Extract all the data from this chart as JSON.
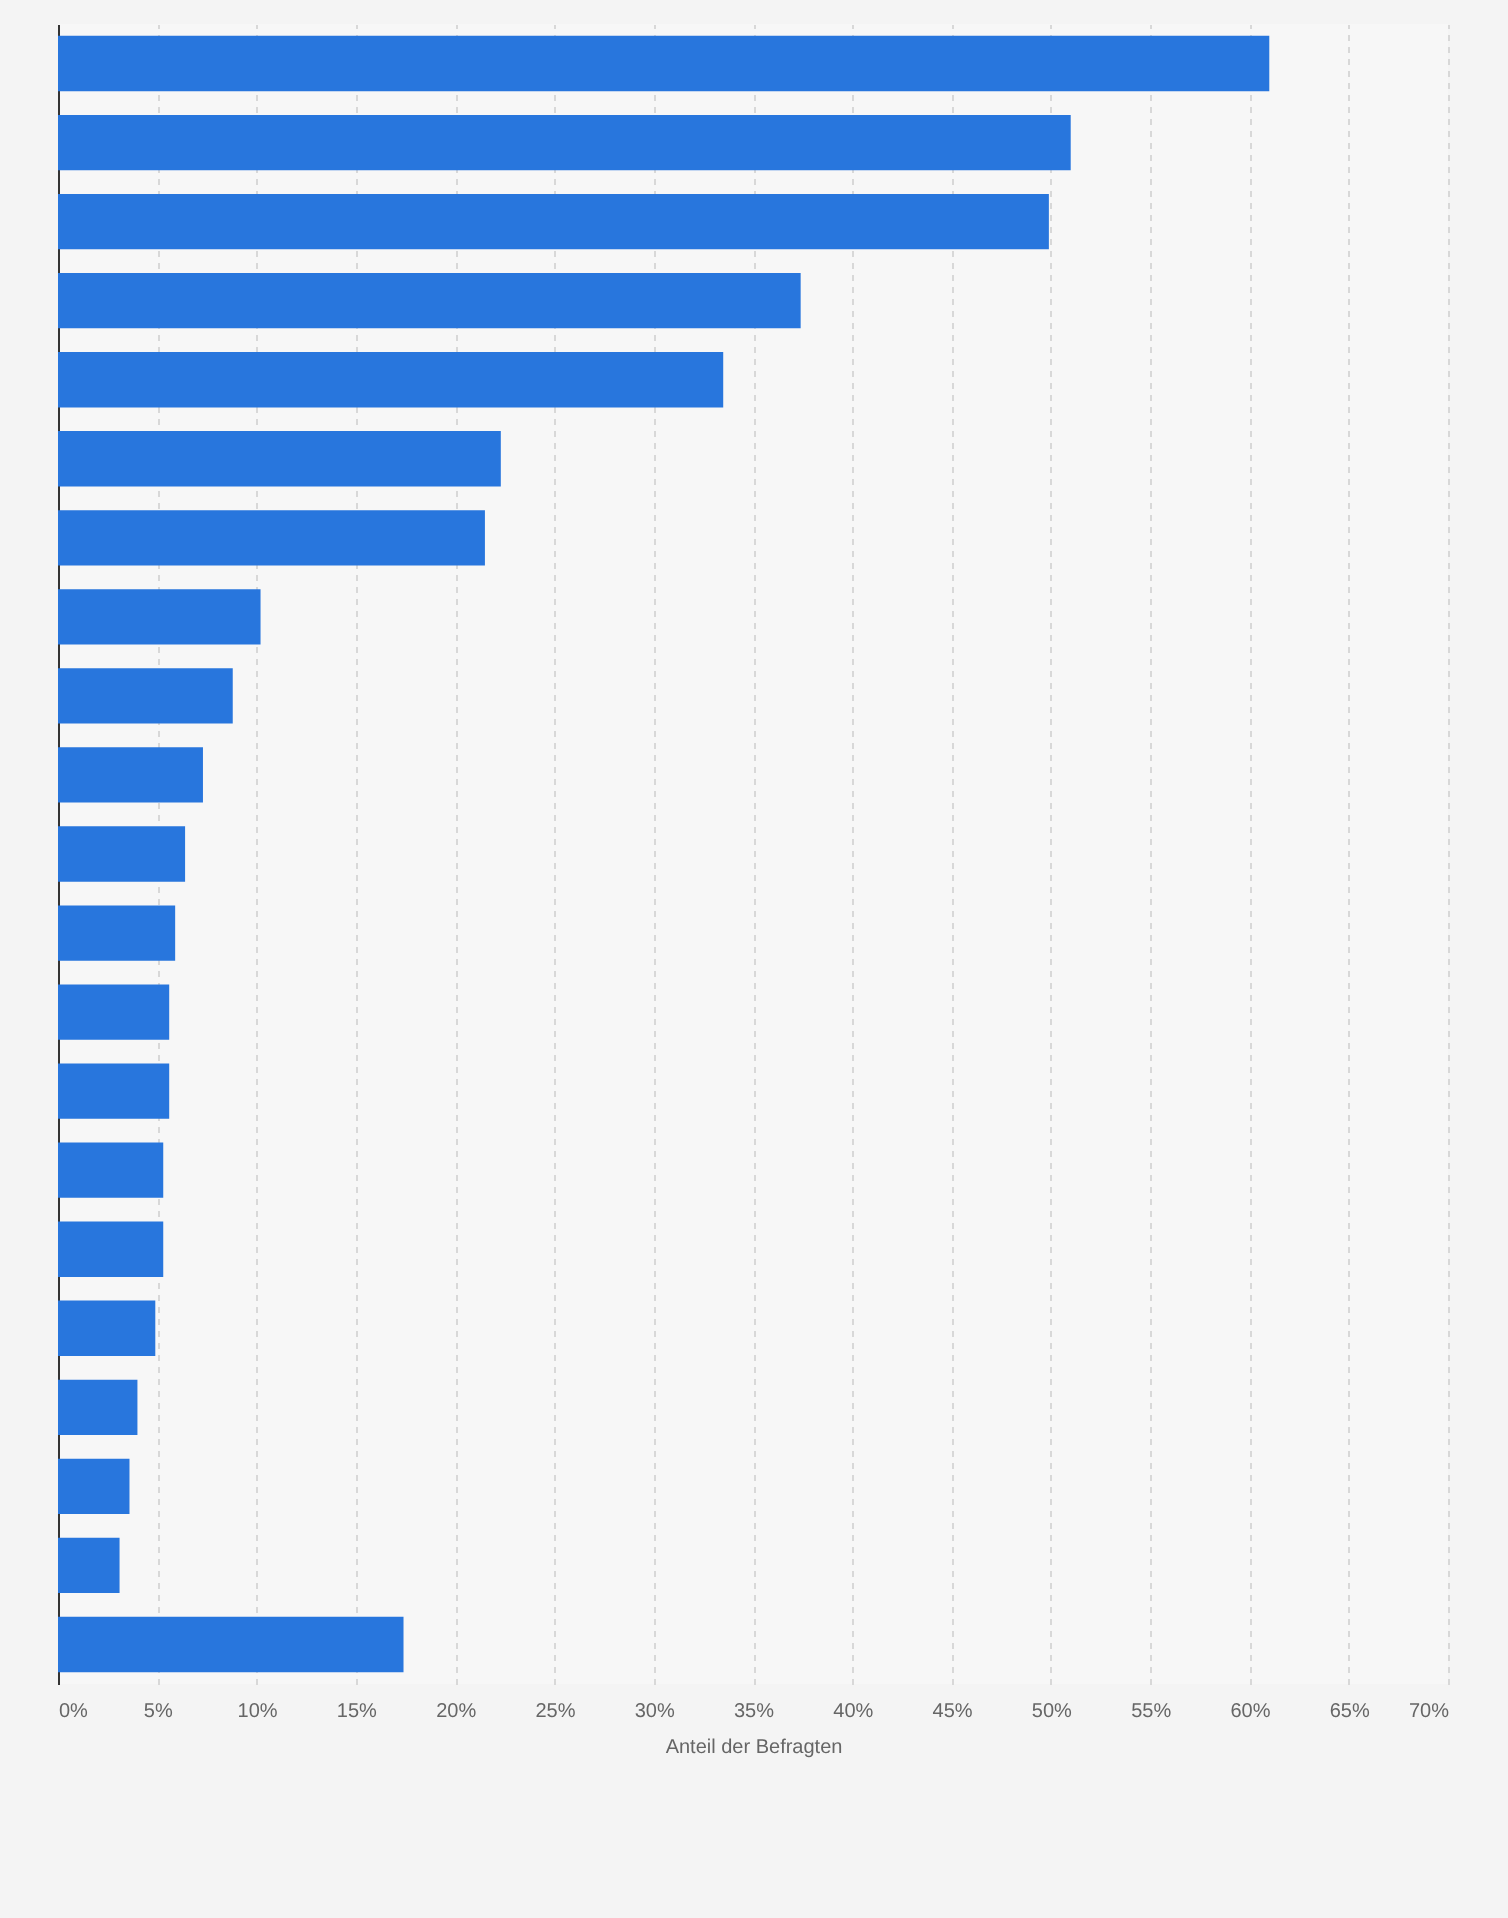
{
  "chart_data": {
    "type": "bar",
    "orientation": "horizontal",
    "xlabel": "Anteil der Befragten",
    "categories": [
      null,
      null,
      null,
      null,
      null,
      null,
      null,
      null,
      null,
      null,
      null,
      null,
      null,
      null,
      null,
      null,
      null,
      null,
      null,
      null,
      null
    ],
    "values": [
      61.0,
      51.0,
      49.9,
      37.4,
      33.5,
      22.3,
      21.5,
      10.2,
      8.8,
      7.3,
      6.4,
      5.9,
      5.6,
      5.6,
      5.3,
      5.3,
      4.9,
      4.0,
      3.6,
      3.1,
      17.4
    ],
    "color": "#2876dd",
    "xlim": [
      0,
      70
    ],
    "xticks": [
      {
        "value": 0,
        "label": "0%"
      },
      {
        "value": 5,
        "label": "5%"
      },
      {
        "value": 10,
        "label": "10%"
      },
      {
        "value": 15,
        "label": "15%"
      },
      {
        "value": 20,
        "label": "20%"
      },
      {
        "value": 25,
        "label": "25%"
      },
      {
        "value": 30,
        "label": "30%"
      },
      {
        "value": 35,
        "label": "35%"
      },
      {
        "value": 40,
        "label": "40%"
      },
      {
        "value": 45,
        "label": "45%"
      },
      {
        "value": 50,
        "label": "50%"
      },
      {
        "value": 55,
        "label": "55%"
      },
      {
        "value": 60,
        "label": "60%"
      },
      {
        "value": 65,
        "label": "65%"
      },
      {
        "value": 70,
        "label": "70%"
      }
    ],
    "grid": "x"
  }
}
